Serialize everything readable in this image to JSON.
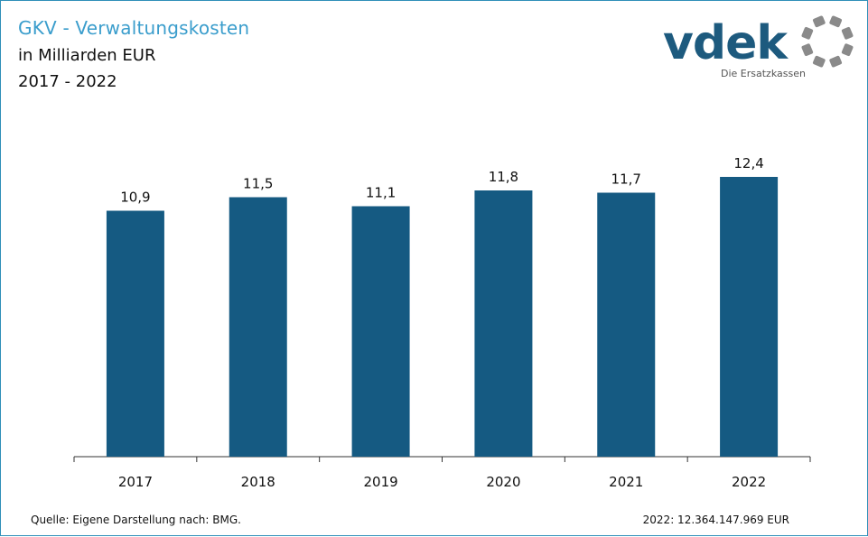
{
  "header": {
    "title": "GKV - Verwaltungskosten",
    "subtitle_unit": "in Milliarden EUR",
    "subtitle_years": "2017 - 2022"
  },
  "logo": {
    "word": "vdek",
    "tagline": "Die Ersatzkassen",
    "word_color": "#1d5a7e",
    "ring_color": "#8a8a8a"
  },
  "chart_data": {
    "type": "bar",
    "categories": [
      "2017",
      "2018",
      "2019",
      "2020",
      "2021",
      "2022"
    ],
    "values": [
      10.9,
      11.5,
      11.1,
      11.8,
      11.7,
      12.4
    ],
    "data_labels": [
      "10,9",
      "11,5",
      "11,1",
      "11,8",
      "11,7",
      "12,4"
    ],
    "ylim": [
      0,
      14.5
    ],
    "bar_color": "#155a82",
    "grid": false
  },
  "footer": {
    "source": "Quelle: Eigene Darstellung nach: BMG.",
    "note": "2022: 12.364.147.969 EUR"
  }
}
